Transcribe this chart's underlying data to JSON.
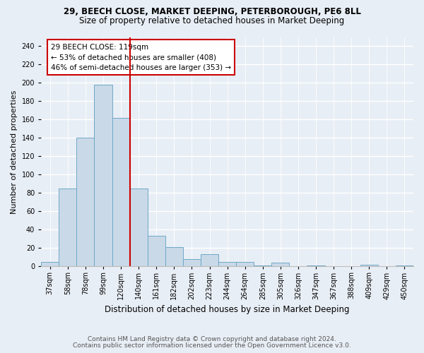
{
  "title_line1": "29, BEECH CLOSE, MARKET DEEPING, PETERBOROUGH, PE6 8LL",
  "title_line2": "Size of property relative to detached houses in Market Deeping",
  "xlabel": "Distribution of detached houses by size in Market Deeping",
  "ylabel": "Number of detached properties",
  "categories": [
    "37sqm",
    "58sqm",
    "78sqm",
    "99sqm",
    "120sqm",
    "140sqm",
    "161sqm",
    "182sqm",
    "202sqm",
    "223sqm",
    "244sqm",
    "264sqm",
    "285sqm",
    "305sqm",
    "326sqm",
    "347sqm",
    "367sqm",
    "388sqm",
    "409sqm",
    "429sqm",
    "450sqm"
  ],
  "values": [
    5,
    85,
    140,
    198,
    162,
    85,
    33,
    21,
    8,
    13,
    5,
    5,
    1,
    4,
    0,
    1,
    0,
    0,
    2,
    0,
    1
  ],
  "bar_color": "#c9d9e8",
  "bar_edge_color": "#6fa8c8",
  "vline_color": "#cc0000",
  "vline_index": 4.5,
  "annotation_line1": "29 BEECH CLOSE: 119sqm",
  "annotation_line2": "← 53% of detached houses are smaller (408)",
  "annotation_line3": "46% of semi-detached houses are larger (353) →",
  "annotation_box_facecolor": "#ffffff",
  "annotation_box_edgecolor": "#cc0000",
  "ylim": [
    0,
    250
  ],
  "yticks": [
    0,
    20,
    40,
    60,
    80,
    100,
    120,
    140,
    160,
    180,
    200,
    220,
    240
  ],
  "footnote1": "Contains HM Land Registry data © Crown copyright and database right 2024.",
  "footnote2": "Contains public sector information licensed under the Open Government Licence v3.0.",
  "bg_color": "#e8eef5",
  "title_fontsize": 8.5,
  "subtitle_fontsize": 8.5,
  "tick_fontsize": 7,
  "xlabel_fontsize": 8.5,
  "ylabel_fontsize": 8,
  "annotation_fontsize": 7.5,
  "footnote_fontsize": 6.5
}
